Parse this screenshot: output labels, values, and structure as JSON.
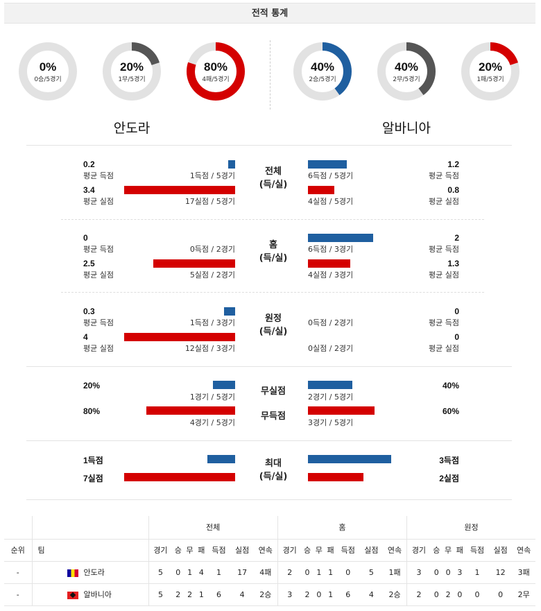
{
  "title": "전적 통계",
  "colors": {
    "blue": "#1f5fa0",
    "red": "#d40000",
    "gray": "#555555",
    "track": "#e2e2e2"
  },
  "donuts": [
    {
      "pct": "0%",
      "sub": "0승/5경기",
      "value": 0,
      "color": "#555555"
    },
    {
      "pct": "20%",
      "sub": "1무/5경기",
      "value": 0.2,
      "color": "#555555"
    },
    {
      "pct": "80%",
      "sub": "4패/5경기",
      "value": 0.8,
      "color": "#d40000"
    },
    {
      "pct": "40%",
      "sub": "2승/5경기",
      "value": 0.4,
      "color": "#1f5fa0"
    },
    {
      "pct": "40%",
      "sub": "2무/5경기",
      "value": 0.4,
      "color": "#555555"
    },
    {
      "pct": "20%",
      "sub": "1패/5경기",
      "value": 0.2,
      "color": "#d40000"
    }
  ],
  "teams": {
    "left": "안도라",
    "right": "알바니아"
  },
  "sections": {
    "total": {
      "cat": "전체",
      "cat2": "(득/실)",
      "l_score": "0.2",
      "l_score_lbl": "평균 득점",
      "l_score_txt": "1득점 / 5경기",
      "l_score_frac": 0.06,
      "l_concede": "3.4",
      "l_concede_lbl": "평균 실점",
      "l_concede_txt": "17실점 / 5경기",
      "l_concede_frac": 1.0,
      "r_score": "1.2",
      "r_score_lbl": "평균 득점",
      "r_score_txt": "6득점 / 5경기",
      "r_score_frac": 0.35,
      "r_concede": "0.8",
      "r_concede_lbl": "평균 실점",
      "r_concede_txt": "4실점 / 5경기",
      "r_concede_frac": 0.24
    },
    "home": {
      "cat": "홈",
      "cat2": "(득/실)",
      "l_score": "0",
      "l_score_lbl": "평균 득점",
      "l_score_txt": "0득점 / 2경기",
      "l_score_frac": 0,
      "l_concede": "2.5",
      "l_concede_lbl": "평균 실점",
      "l_concede_txt": "5실점 / 2경기",
      "l_concede_frac": 0.74,
      "r_score": "2",
      "r_score_lbl": "평균 득점",
      "r_score_txt": "6득점 / 3경기",
      "r_score_frac": 0.59,
      "r_concede": "1.3",
      "r_concede_lbl": "평균 실점",
      "r_concede_txt": "4실점 / 3경기",
      "r_concede_frac": 0.38
    },
    "away": {
      "cat": "원정",
      "cat2": "(득/실)",
      "l_score": "0.3",
      "l_score_lbl": "평균 득점",
      "l_score_txt": "1득점 / 3경기",
      "l_score_frac": 0.1,
      "l_concede": "4",
      "l_concede_lbl": "평균 실점",
      "l_concede_txt": "12실점 / 3경기",
      "l_concede_frac": 1.0,
      "r_score": "0",
      "r_score_lbl": "평균 득점",
      "r_score_txt": "0득점 / 2경기",
      "r_score_frac": 0,
      "r_concede": "0",
      "r_concede_lbl": "평균 실점",
      "r_concede_txt": "0실점 / 2경기",
      "r_concede_frac": 0
    }
  },
  "clean": {
    "cat1": "무실점",
    "cat2": "무득점",
    "l_clean": "20%",
    "l_clean_txt": "1경기 / 5경기",
    "l_clean_frac": 0.2,
    "l_fail": "80%",
    "l_fail_txt": "4경기 / 5경기",
    "l_fail_frac": 0.8,
    "r_clean": "40%",
    "r_clean_txt": "2경기 / 5경기",
    "r_clean_frac": 0.4,
    "r_fail": "60%",
    "r_fail_txt": "3경기 / 5경기",
    "r_fail_frac": 0.6
  },
  "max": {
    "cat": "최대",
    "cat2": "(득/실)",
    "l_score": "1득점",
    "l_score_frac": 0.25,
    "l_concede": "7실점",
    "l_concede_frac": 1.0,
    "r_score": "3득점",
    "r_score_frac": 0.75,
    "r_concede": "2실점",
    "r_concede_frac": 0.5
  },
  "table": {
    "groups": [
      "전체",
      "홈",
      "원정"
    ],
    "rank_h": "순위",
    "team_h": "팀",
    "cols": [
      "경기",
      "승",
      "무",
      "패",
      "득점",
      "실점",
      "연속"
    ],
    "rows": [
      {
        "rank": "-",
        "team": "안도라",
        "flag": "andorra",
        "total": [
          "5",
          "0",
          "1",
          "4",
          "1",
          "17",
          "4패"
        ],
        "home": [
          "2",
          "0",
          "1",
          "1",
          "0",
          "5",
          "1패"
        ],
        "away": [
          "3",
          "0",
          "0",
          "3",
          "1",
          "12",
          "3패"
        ]
      },
      {
        "rank": "-",
        "team": "알바니아",
        "flag": "albania",
        "total": [
          "5",
          "2",
          "2",
          "1",
          "6",
          "4",
          "2승"
        ],
        "home": [
          "3",
          "2",
          "0",
          "1",
          "6",
          "4",
          "2승"
        ],
        "away": [
          "2",
          "0",
          "2",
          "0",
          "0",
          "0",
          "2무"
        ]
      }
    ]
  }
}
